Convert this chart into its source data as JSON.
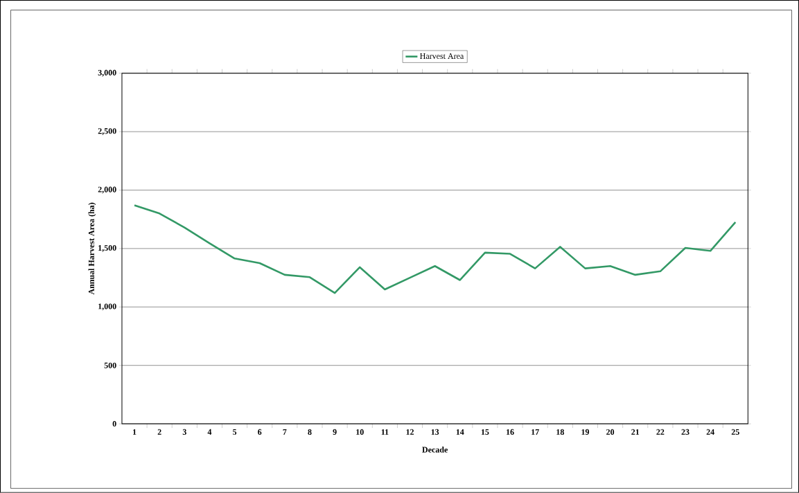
{
  "chart_data": {
    "type": "line",
    "xlabel": "Decade",
    "ylabel": "Annual Harvest Area (ha)",
    "categories": [
      "1",
      "2",
      "3",
      "4",
      "5",
      "6",
      "7",
      "8",
      "9",
      "10",
      "11",
      "12",
      "13",
      "14",
      "15",
      "16",
      "17",
      "18",
      "19",
      "20",
      "21",
      "22",
      "23",
      "24",
      "25"
    ],
    "series": [
      {
        "name": "Harvest Area",
        "color": "#339966",
        "values": [
          1870,
          1800,
          1680,
          1545,
          1415,
          1375,
          1275,
          1255,
          1120,
          1340,
          1150,
          1250,
          1350,
          1230,
          1465,
          1455,
          1330,
          1515,
          1330,
          1350,
          1275,
          1305,
          1505,
          1480,
          1725
        ]
      }
    ],
    "ylim": [
      0,
      3000
    ],
    "yticks": [
      {
        "value": 0,
        "label": "0"
      },
      {
        "value": 500,
        "label": "500"
      },
      {
        "value": 1000,
        "label": "1,000"
      },
      {
        "value": 1500,
        "label": "1,500"
      },
      {
        "value": 2000,
        "label": "2,000"
      },
      {
        "value": 2500,
        "label": "2,500"
      },
      {
        "value": 3000,
        "label": "3,000"
      }
    ],
    "grid": "y",
    "legend": "top",
    "marker": "none",
    "line_style": "solid"
  }
}
